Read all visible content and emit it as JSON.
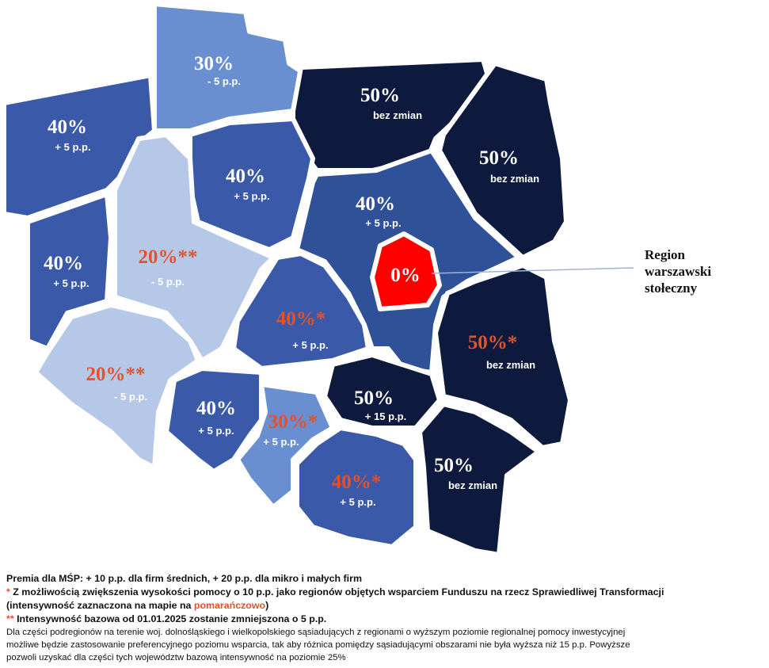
{
  "regions": [
    {
      "intensity": "40%",
      "change": "+ 5 p.p."
    },
    {
      "intensity": "30%",
      "change": "- 5 p.p."
    },
    {
      "intensity": "50%",
      "change": "bez zmian"
    },
    {
      "intensity": "50%",
      "change": "bez zmian"
    },
    {
      "intensity": "40%",
      "change": "+ 5 p.p."
    },
    {
      "intensity": "40%",
      "change": "+ 5 p.p."
    },
    {
      "intensity": "20%**",
      "change": "- 5 p.p."
    },
    {
      "intensity": "40%",
      "change": "+ 5 p.p."
    },
    {
      "intensity": "0%"
    },
    {
      "intensity": "40%*",
      "change": "+ 5 p.p."
    },
    {
      "intensity": "50%*",
      "change": "bez zmian"
    },
    {
      "intensity": "20%**",
      "change": "- 5 p.p."
    },
    {
      "intensity": "40%",
      "change": "+ 5 p.p."
    },
    {
      "intensity": "30%*",
      "change": "+ 5 p.p."
    },
    {
      "intensity": "50%",
      "change": "+ 15 p.p."
    },
    {
      "intensity": "40%*",
      "change": "+ 5 p.p."
    },
    {
      "intensity": "50%",
      "change": "bez zmian"
    }
  ],
  "callout": {
    "lines": [
      "Region",
      "warszawski",
      "stołeczny"
    ]
  },
  "notes": {
    "premium": "Premia dla MŚP: + 10 p.p. dla firm średnich, + 20 p.p. dla mikro i małych firm",
    "star": {
      "marker": "*",
      "text": "Z możliwością zwiększenia wysokości pomocy o 10 p.p. jako regionów objętych wsparciem Funduszu na rzecz Sprawiedliwej Transformacji"
    },
    "star_cont": {
      "before": "(intensywność zaznaczona na mapie na ",
      "highlight": "pomarańczowo",
      "after": ")"
    },
    "double_star": {
      "marker": "**",
      "text": "Intensywność bazowa od 01.01.2025 zostanie zmniejszona o 5 p.p."
    },
    "paragraph": [
      "Dla części podregionów na terenie woj. dolnośląskiego i wielkopolskiego sąsiadujących z regionami o wyższym poziomie regionalnej pomocy inwestycyjnej",
      "możliwe będzie zastosowanie preferencyjnego poziomu wsparcia, tak aby różnica pomiędzy sąsiadującymi obszarami nie była wyższa niż 15 p.p. Powyższe",
      "pozwoli uzyskać dla części tych województw bazową intensywność na poziomie 25%"
    ]
  }
}
